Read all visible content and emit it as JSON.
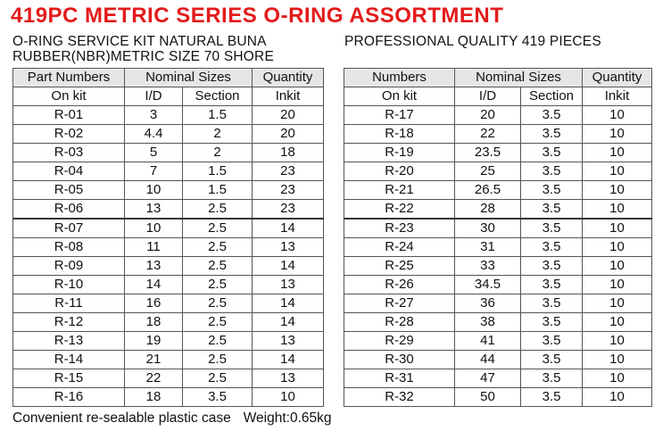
{
  "title": "419PC METRIC SERIES  O-RING ASSORTMENT",
  "subtitle_line1": "O-RING SERVICE KIT NATURAL BUNA",
  "subtitle_line2": "RUBBER(NBR)METRIC SIZE 70 SHORE",
  "subtitle_right": "PROFESSIONAL QUALITY 419 PIECES",
  "left_table": {
    "header1": [
      "Part Numbers",
      "Nominal Sizes",
      "Quantity"
    ],
    "header2": [
      "On kit",
      "I/D",
      "Section",
      "Inkit"
    ],
    "rows": [
      [
        "R-01",
        "3",
        "1.5",
        "20"
      ],
      [
        "R-02",
        "4.4",
        "2",
        "20"
      ],
      [
        "R-03",
        "5",
        "2",
        "18"
      ],
      [
        "R-04",
        "7",
        "1.5",
        "23"
      ],
      [
        "R-05",
        "10",
        "1.5",
        "23"
      ],
      [
        "R-06",
        "13",
        "2.5",
        "23"
      ],
      [
        "R-07",
        "10",
        "2.5",
        "14"
      ],
      [
        "R-08",
        "11",
        "2.5",
        "13"
      ],
      [
        "R-09",
        "13",
        "2.5",
        "14"
      ],
      [
        "R-10",
        "14",
        "2.5",
        "13"
      ],
      [
        "R-11",
        "16",
        "2.5",
        "14"
      ],
      [
        "R-12",
        "18",
        "2.5",
        "14"
      ],
      [
        "R-13",
        "19",
        "2.5",
        "13"
      ],
      [
        "R-14",
        "21",
        "2.5",
        "14"
      ],
      [
        "R-15",
        "22",
        "2.5",
        "13"
      ],
      [
        "R-16",
        "18",
        "3.5",
        "10"
      ]
    ]
  },
  "right_table": {
    "header1": [
      "Numbers",
      "Nominal Sizes",
      "Quantity"
    ],
    "header2": [
      "On kit",
      "I/D",
      "Section",
      "Inkit"
    ],
    "rows": [
      [
        "R-17",
        "20",
        "3.5",
        "10"
      ],
      [
        "R-18",
        "22",
        "3.5",
        "10"
      ],
      [
        "R-19",
        "23.5",
        "3.5",
        "10"
      ],
      [
        "R-20",
        "25",
        "3.5",
        "10"
      ],
      [
        "R-21",
        "26.5",
        "3.5",
        "10"
      ],
      [
        "R-22",
        "28",
        "3.5",
        "10"
      ],
      [
        "R-23",
        "30",
        "3.5",
        "10"
      ],
      [
        "R-24",
        "31",
        "3.5",
        "10"
      ],
      [
        "R-25",
        "33",
        "3.5",
        "10"
      ],
      [
        "R-26",
        "34.5",
        "3.5",
        "10"
      ],
      [
        "R-27",
        "36",
        "3.5",
        "10"
      ],
      [
        "R-28",
        "38",
        "3.5",
        "10"
      ],
      [
        "R-29",
        "41",
        "3.5",
        "10"
      ],
      [
        "R-30",
        "44",
        "3.5",
        "10"
      ],
      [
        "R-31",
        "47",
        "3.5",
        "10"
      ],
      [
        "R-32",
        "50",
        "3.5",
        "10"
      ]
    ]
  },
  "footer": {
    "case_text": "Convenient re-sealable plastic case",
    "weight_text": "Weight:0.65kg"
  },
  "colors": {
    "title": "#e31b1b",
    "header_bg": "#e6e6e6"
  }
}
